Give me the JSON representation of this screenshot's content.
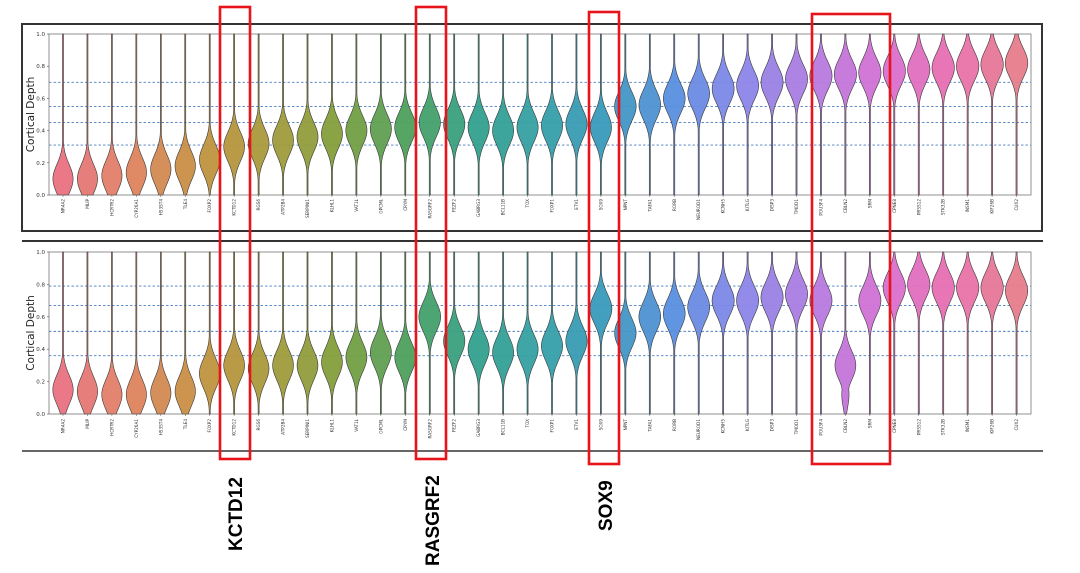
{
  "chart_data": [
    {
      "type": "violin",
      "panel": "top",
      "ylabel": "Cortical Depth",
      "ylim": [
        0,
        1.0
      ],
      "yticks": [
        "0.0",
        "0.2",
        "0.4",
        "0.6",
        "0.8",
        "1.0"
      ],
      "reference_lines": [
        0.31,
        0.45,
        0.55,
        0.7
      ],
      "categories": [
        "NR4A2",
        "MLIP",
        "HCRTR2",
        "CYP26A1",
        "HS3ST4",
        "TLE4",
        "FOXP2",
        "KCTD12",
        "RGS6",
        "ATP2B4",
        "SERPINI1",
        "KLHL1",
        "VAT1L",
        "OPCML",
        "CRYM",
        "RASGRF2",
        "FEZF2",
        "GABRG3",
        "BCL11B",
        "TOX",
        "FOXP1",
        "ETV1",
        "SOX9",
        "NPNT",
        "TAFA1",
        "RORB",
        "NEUROD1",
        "KCNH5",
        "KITLG",
        "DISP3",
        "TMOD1",
        "POU3F4",
        "CBLN2",
        "SRM",
        "CPNE8",
        "PRSS12",
        "STK32B",
        "INSM1",
        "KIF26B",
        "CUX2"
      ],
      "medians": [
        0.1,
        0.1,
        0.12,
        0.14,
        0.16,
        0.18,
        0.22,
        0.3,
        0.32,
        0.34,
        0.36,
        0.38,
        0.4,
        0.41,
        0.42,
        0.45,
        0.44,
        0.42,
        0.4,
        0.42,
        0.43,
        0.44,
        0.42,
        0.55,
        0.56,
        0.6,
        0.63,
        0.66,
        0.68,
        0.7,
        0.72,
        0.74,
        0.75,
        0.76,
        0.77,
        0.78,
        0.79,
        0.8,
        0.81,
        0.82
      ]
    },
    {
      "type": "violin",
      "panel": "bottom",
      "ylabel": "Cortical Depth",
      "ylim": [
        0,
        1.0
      ],
      "yticks": [
        "0.0",
        "0.2",
        "0.4",
        "0.6",
        "0.8",
        "1.0"
      ],
      "reference_lines": [
        0.36,
        0.51,
        0.67,
        0.79
      ],
      "categories": [
        "NR4A2",
        "MLIP",
        "HCRTR2",
        "CYP26A1",
        "HS3ST4",
        "TLE4",
        "FOXP2",
        "KCTD12",
        "RGS6",
        "ATP2B4",
        "SERPINI1",
        "KLHL1",
        "VAT1L",
        "OPCML",
        "CRYM",
        "RASGRF2",
        "FEZF2",
        "GABRG3",
        "BCL11B",
        "TOX",
        "FOXP1",
        "ETV1",
        "SOX9",
        "NPNT",
        "TAFA1",
        "RORB",
        "NEUROD1",
        "KCNH5",
        "KITLG",
        "DISP3",
        "TMOD1",
        "POU3F4",
        "CBLN2",
        "SRM",
        "CPNE8",
        "PRSS12",
        "STK32B",
        "INSM1",
        "KIF26B",
        "CUX2"
      ],
      "medians": [
        0.15,
        0.14,
        0.12,
        0.12,
        0.13,
        0.14,
        0.25,
        0.3,
        0.28,
        0.3,
        0.3,
        0.32,
        0.35,
        0.38,
        0.35,
        0.6,
        0.45,
        0.4,
        0.38,
        0.4,
        0.42,
        0.45,
        0.65,
        0.5,
        0.6,
        0.62,
        0.66,
        0.7,
        0.7,
        0.72,
        0.74,
        0.7,
        0.3,
        0.7,
        0.78,
        0.8,
        0.78,
        0.78,
        0.78,
        0.76
      ]
    }
  ],
  "highlights": [
    {
      "label": "KCTD12",
      "genes": [
        "KCTD12"
      ]
    },
    {
      "label": "RASGRF2",
      "genes": [
        "RASGRF2"
      ]
    },
    {
      "label": "SOX9",
      "genes": [
        "SOX9"
      ]
    },
    {
      "label": "",
      "genes": [
        "POU3F4",
        "CBLN2",
        "SRM"
      ]
    }
  ],
  "colors": {
    "reference_line": "#4a7fc1",
    "highlight_box": "#e8141c",
    "violin_edge": "#3a3a3a",
    "palette": [
      "#e9717f",
      "#df8360",
      "#c4913f",
      "#a69a3c",
      "#829e3a",
      "#4fa05b",
      "#33a08a",
      "#35a0a6",
      "#3a99bc",
      "#5a8ee0",
      "#8a86e8",
      "#b27ae0",
      "#d66fd2",
      "#e86fb0",
      "#e77c8c"
    ]
  }
}
